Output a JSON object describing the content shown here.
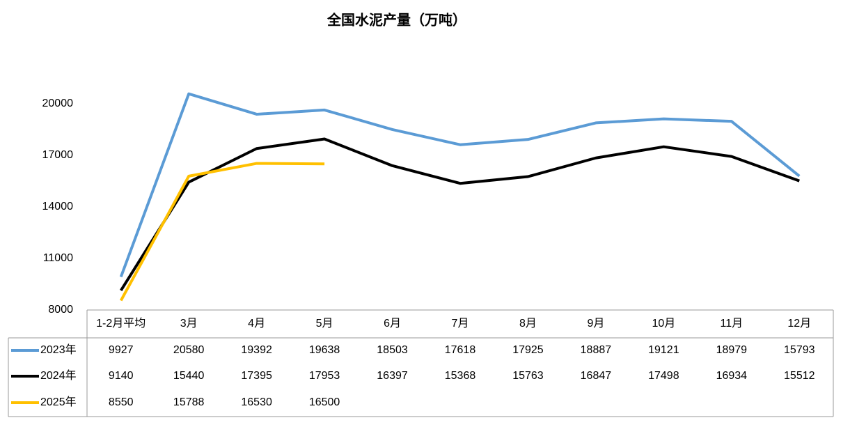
{
  "chart_data": {
    "type": "line",
    "title": "全国水泥产量（万吨）",
    "categories": [
      "1-2月平均",
      "3月",
      "4月",
      "5月",
      "6月",
      "7月",
      "8月",
      "9月",
      "10月",
      "11月",
      "12月"
    ],
    "series": [
      {
        "name": "2023年",
        "color": "#5b9bd5",
        "values": [
          9927,
          20580,
          19392,
          19638,
          18503,
          17618,
          17925,
          18887,
          19121,
          18979,
          15793
        ]
      },
      {
        "name": "2024年",
        "color": "#000000",
        "values": [
          9140,
          15440,
          17395,
          17953,
          16397,
          15368,
          15763,
          16847,
          17498,
          16934,
          15512
        ]
      },
      {
        "name": "2025年",
        "color": "#ffc000",
        "values": [
          8550,
          15788,
          16530,
          16500,
          null,
          null,
          null,
          null,
          null,
          null,
          null
        ]
      }
    ],
    "ylim": [
      8000,
      21000
    ],
    "yticks": [
      8000,
      11000,
      14000,
      17000,
      20000
    ],
    "grid": false,
    "data_table": true
  }
}
